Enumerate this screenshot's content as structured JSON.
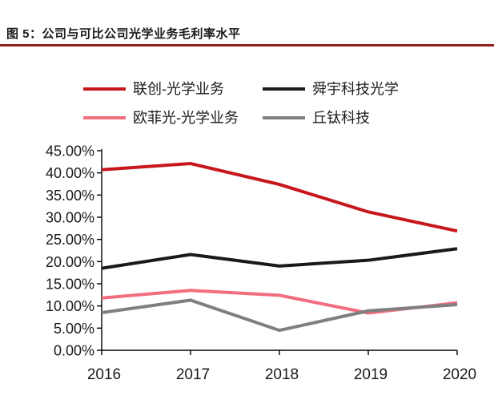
{
  "page": {
    "title": "图 5：公司与可比公司光学业务毛利率水平"
  },
  "theme": {
    "accent_rule_color": "#8E2020",
    "axis_color": "#000000",
    "text_color": "#1A1A1A",
    "background": "#FFFFFF"
  },
  "chart_data": {
    "type": "line",
    "title": "图 5：公司与可比公司光学业务毛利率水平",
    "categories": [
      "2016",
      "2017",
      "2018",
      "2019",
      "2020"
    ],
    "series": [
      {
        "name": "联创-光学业务",
        "color": "#C8161D",
        "values": [
          40.7,
          42.1,
          37.4,
          31.2,
          26.9
        ]
      },
      {
        "name": "舜宇科技光学",
        "color": "#1A1A1A",
        "values": [
          18.5,
          21.6,
          19.0,
          20.3,
          22.9
        ]
      },
      {
        "name": "欧菲光-光学业务",
        "color": "#F26D7D",
        "values": [
          11.8,
          13.5,
          12.4,
          8.4,
          10.7
        ]
      },
      {
        "name": "丘钛科技",
        "color": "#7F7F7F",
        "values": [
          8.5,
          11.3,
          4.5,
          8.9,
          10.3
        ]
      }
    ],
    "ylim": [
      0,
      45
    ],
    "ytick_step": 5,
    "ytick_labels": [
      "0.00%",
      "5.00%",
      "10.00%",
      "15.00%",
      "20.00%",
      "25.00%",
      "30.00%",
      "35.00%",
      "40.00%",
      "45.00%"
    ],
    "ylabel": "",
    "xlabel": "",
    "legend_position": "top",
    "grid": false
  }
}
